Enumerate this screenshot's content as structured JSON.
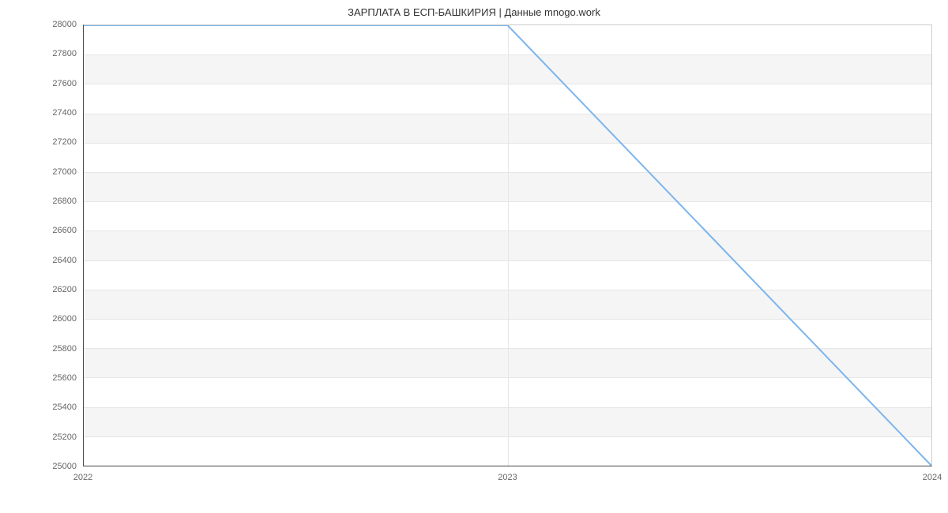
{
  "chart": {
    "type": "line",
    "title": "ЗАРПЛАТА В  ЕСП-БАШКИРИЯ | Данные mnogo.work",
    "title_fontsize": 13,
    "title_color": "#333333",
    "background_color": "#ffffff",
    "plot_border_color_strong": "#444444",
    "plot_border_color_light": "#cccccc",
    "grid_color": "#e6e6e6",
    "band_color": "#f5f5f5",
    "tick_label_color": "#666666",
    "tick_label_fontsize": 11,
    "line_color": "#7cb5ec",
    "line_width": 2,
    "x": {
      "min": 2022,
      "max": 2024,
      "ticks": [
        2022,
        2023,
        2024
      ],
      "labels": [
        "2022",
        "2023",
        "2024"
      ]
    },
    "y": {
      "min": 25000,
      "max": 28000,
      "ticks": [
        25000,
        25200,
        25400,
        25600,
        25800,
        26000,
        26200,
        26400,
        26600,
        26800,
        27000,
        27200,
        27400,
        27600,
        27800,
        28000
      ],
      "labels": [
        "25000",
        "25200",
        "25400",
        "25600",
        "25800",
        "26000",
        "26200",
        "26400",
        "26600",
        "26800",
        "27000",
        "27200",
        "27400",
        "27600",
        "27800",
        "28000"
      ]
    },
    "series": [
      {
        "x": 2022,
        "y": 28000
      },
      {
        "x": 2023,
        "y": 28000
      },
      {
        "x": 2024,
        "y": 25000
      }
    ]
  }
}
